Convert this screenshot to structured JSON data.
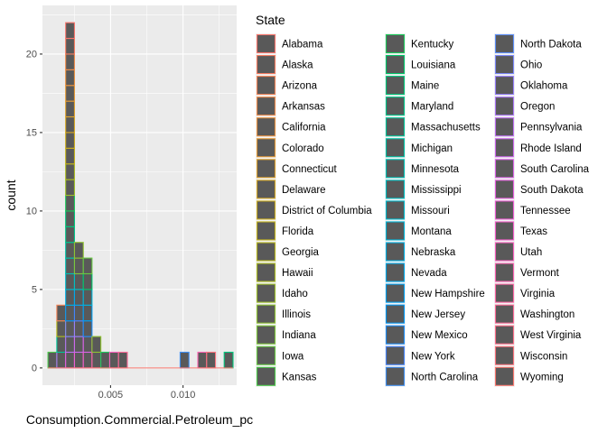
{
  "chart_data": {
    "type": "bar",
    "title": "",
    "xlabel": "Consumption.Commercial.Petroleum_pc",
    "ylabel": "count",
    "xlim": [
      0.0003,
      0.0137
    ],
    "ylim": [
      -1.1,
      23.1
    ],
    "x_ticks": [
      0.005,
      0.01
    ],
    "x_tick_labels": [
      "0.005",
      "0.010"
    ],
    "y_ticks": [
      0,
      5,
      10,
      15,
      20
    ],
    "y_tick_labels": [
      "0",
      "5",
      "10",
      "15",
      "20"
    ],
    "grid": true,
    "panel_background": "#ebebeb",
    "bar_fill": "#595959",
    "bin_width": 0.000608,
    "bins": [
      {
        "x0": 0.00068,
        "x1": 0.00129,
        "counts": [
          {
            "state": "Kansas",
            "n": 1
          }
        ]
      },
      {
        "x0": 0.00129,
        "x1": 0.0019,
        "counts": [
          {
            "state": "Arizona",
            "n": 1
          },
          {
            "state": "Georgia",
            "n": 1
          },
          {
            "state": "Massachusetts",
            "n": 1
          },
          {
            "state": "Oregon",
            "n": 1
          }
        ]
      },
      {
        "x0": 0.0019,
        "x1": 0.00251,
        "counts": [
          {
            "state": "Alabama",
            "n": 1
          },
          {
            "state": "Alaska",
            "n": 1
          },
          {
            "state": "Arkansas",
            "n": 1
          },
          {
            "state": "California",
            "n": 1
          },
          {
            "state": "Colorado",
            "n": 1
          },
          {
            "state": "Connecticut",
            "n": 1
          },
          {
            "state": "Delaware",
            "n": 1
          },
          {
            "state": "District of Columbia",
            "n": 1
          },
          {
            "state": "Florida",
            "n": 1
          },
          {
            "state": "Hawaii",
            "n": 1
          },
          {
            "state": "Idaho",
            "n": 1
          },
          {
            "state": "Kentucky",
            "n": 1
          },
          {
            "state": "Maine",
            "n": 1
          },
          {
            "state": "Maryland",
            "n": 1
          },
          {
            "state": "Michigan",
            "n": 1
          },
          {
            "state": "Minnesota",
            "n": 1
          },
          {
            "state": "Missouri",
            "n": 1
          },
          {
            "state": "Nebraska",
            "n": 1
          },
          {
            "state": "New Jersey",
            "n": 1
          },
          {
            "state": "Ohio",
            "n": 1
          },
          {
            "state": "Pennsylvania",
            "n": 1
          },
          {
            "state": "South Dakota",
            "n": 1
          }
        ]
      },
      {
        "x0": 0.00251,
        "x1": 0.00312,
        "counts": [
          {
            "state": "Illinois",
            "n": 1
          },
          {
            "state": "Indiana",
            "n": 1
          },
          {
            "state": "Mississippi",
            "n": 1
          },
          {
            "state": "Nevada",
            "n": 1
          },
          {
            "state": "New York",
            "n": 1
          },
          {
            "state": "Oklahoma",
            "n": 1
          },
          {
            "state": "Rhode Island",
            "n": 1
          },
          {
            "state": "Tennessee",
            "n": 1
          }
        ]
      },
      {
        "x0": 0.00312,
        "x1": 0.00372,
        "counts": [
          {
            "state": "Iowa",
            "n": 1
          },
          {
            "state": "Louisiana",
            "n": 1
          },
          {
            "state": "Montana",
            "n": 1
          },
          {
            "state": "New Hampshire",
            "n": 1
          },
          {
            "state": "New Mexico",
            "n": 1
          },
          {
            "state": "South Carolina",
            "n": 1
          },
          {
            "state": "Texas",
            "n": 1
          }
        ]
      },
      {
        "x0": 0.00372,
        "x1": 0.00433,
        "counts": [
          {
            "state": "Illinois",
            "n": 1
          },
          {
            "state": "Virginia",
            "n": 1
          }
        ]
      },
      {
        "x0": 0.00433,
        "x1": 0.00494,
        "counts": [
          {
            "state": "Kentucky",
            "n": 1
          }
        ]
      },
      {
        "x0": 0.00494,
        "x1": 0.00555,
        "counts": [
          {
            "state": "Utah",
            "n": 1
          }
        ]
      },
      {
        "x0": 0.00555,
        "x1": 0.00616,
        "counts": [
          {
            "state": "Washington",
            "n": 1
          }
        ]
      },
      {
        "x0": 0.00616,
        "x1": 0.00676,
        "counts": []
      },
      {
        "x0": 0.00676,
        "x1": 0.00737,
        "counts": []
      },
      {
        "x0": 0.00737,
        "x1": 0.00798,
        "counts": []
      },
      {
        "x0": 0.00798,
        "x1": 0.00859,
        "counts": []
      },
      {
        "x0": 0.00859,
        "x1": 0.0092,
        "counts": []
      },
      {
        "x0": 0.0092,
        "x1": 0.0098,
        "counts": []
      },
      {
        "x0": 0.0098,
        "x1": 0.01041,
        "counts": [
          {
            "state": "North Carolina",
            "n": 1
          }
        ]
      },
      {
        "x0": 0.01041,
        "x1": 0.01102,
        "counts": []
      },
      {
        "x0": 0.01102,
        "x1": 0.01163,
        "counts": [
          {
            "state": "Vermont",
            "n": 1
          }
        ]
      },
      {
        "x0": 0.01163,
        "x1": 0.01224,
        "counts": [
          {
            "state": "Wisconsin",
            "n": 1
          }
        ]
      },
      {
        "x0": 0.01224,
        "x1": 0.01284,
        "counts": []
      },
      {
        "x0": 0.01284,
        "x1": 0.01345,
        "counts": [
          {
            "state": "Maine",
            "n": 1
          }
        ]
      }
    ],
    "legend": {
      "title": "State",
      "placement": "right",
      "columns": 3,
      "entries": [
        {
          "label": "Alabama",
          "color": "#F8766D"
        },
        {
          "label": "Alaska",
          "color": "#F67D62"
        },
        {
          "label": "Arizona",
          "color": "#F28458"
        },
        {
          "label": "Arkansas",
          "color": "#EE8B4C"
        },
        {
          "label": "California",
          "color": "#E99241"
        },
        {
          "label": "Colorado",
          "color": "#E49A37"
        },
        {
          "label": "Connecticut",
          "color": "#DDA12E"
        },
        {
          "label": "Delaware",
          "color": "#D5A826"
        },
        {
          "label": "District of Columbia",
          "color": "#CCAE1F"
        },
        {
          "label": "Florida",
          "color": "#C3B31B"
        },
        {
          "label": "Georgia",
          "color": "#B8B71C"
        },
        {
          "label": "Hawaii",
          "color": "#ACBC22"
        },
        {
          "label": "Idaho",
          "color": "#9EC02A"
        },
        {
          "label": "Illinois",
          "color": "#8FC332"
        },
        {
          "label": "Indiana",
          "color": "#7DC63B"
        },
        {
          "label": "Iowa",
          "color": "#67C843"
        },
        {
          "label": "Kansas",
          "color": "#4CCA4B"
        },
        {
          "label": "Kentucky",
          "color": "#1CC95B"
        },
        {
          "label": "Louisiana",
          "color": "#00C86B"
        },
        {
          "label": "Maine",
          "color": "#00C77B"
        },
        {
          "label": "Maryland",
          "color": "#00C68A"
        },
        {
          "label": "Massachusetts",
          "color": "#00C599"
        },
        {
          "label": "Michigan",
          "color": "#00C3A7"
        },
        {
          "label": "Minnesota",
          "color": "#00C1B5"
        },
        {
          "label": "Mississippi",
          "color": "#00BEC2"
        },
        {
          "label": "Missouri",
          "color": "#00BACE"
        },
        {
          "label": "Montana",
          "color": "#00B5D9"
        },
        {
          "label": "Nebraska",
          "color": "#00AFE3"
        },
        {
          "label": "Nevada",
          "color": "#00A8EB"
        },
        {
          "label": "New Hampshire",
          "color": "#00A0F1"
        },
        {
          "label": "New Jersey",
          "color": "#0097F5"
        },
        {
          "label": "New Mexico",
          "color": "#1C8DF8"
        },
        {
          "label": "New York",
          "color": "#4483F9"
        },
        {
          "label": "North Carolina",
          "color": "#3D8DF0"
        },
        {
          "label": "North Dakota",
          "color": "#5E8FF8"
        },
        {
          "label": "Ohio",
          "color": "#7C88F8"
        },
        {
          "label": "Oklahoma",
          "color": "#957FF8"
        },
        {
          "label": "Oregon",
          "color": "#AA77F5"
        },
        {
          "label": "Pennsylvania",
          "color": "#BC6FF1"
        },
        {
          "label": "Rhode Island",
          "color": "#CB68EB"
        },
        {
          "label": "South Carolina",
          "color": "#D863E4"
        },
        {
          "label": "South Dakota",
          "color": "#E35FDC"
        },
        {
          "label": "Tennessee",
          "color": "#EC5DD3"
        },
        {
          "label": "Texas",
          "color": "#F25DC8"
        },
        {
          "label": "Utah",
          "color": "#F75FBD"
        },
        {
          "label": "Vermont",
          "color": "#FA62B1"
        },
        {
          "label": "Virginia",
          "color": "#FC66A4"
        },
        {
          "label": "Washington",
          "color": "#FC6A97"
        },
        {
          "label": "West Virginia",
          "color": "#FB6E89"
        },
        {
          "label": "Wisconsin",
          "color": "#F9727C"
        },
        {
          "label": "Wyoming",
          "color": "#F8766D"
        }
      ]
    }
  }
}
